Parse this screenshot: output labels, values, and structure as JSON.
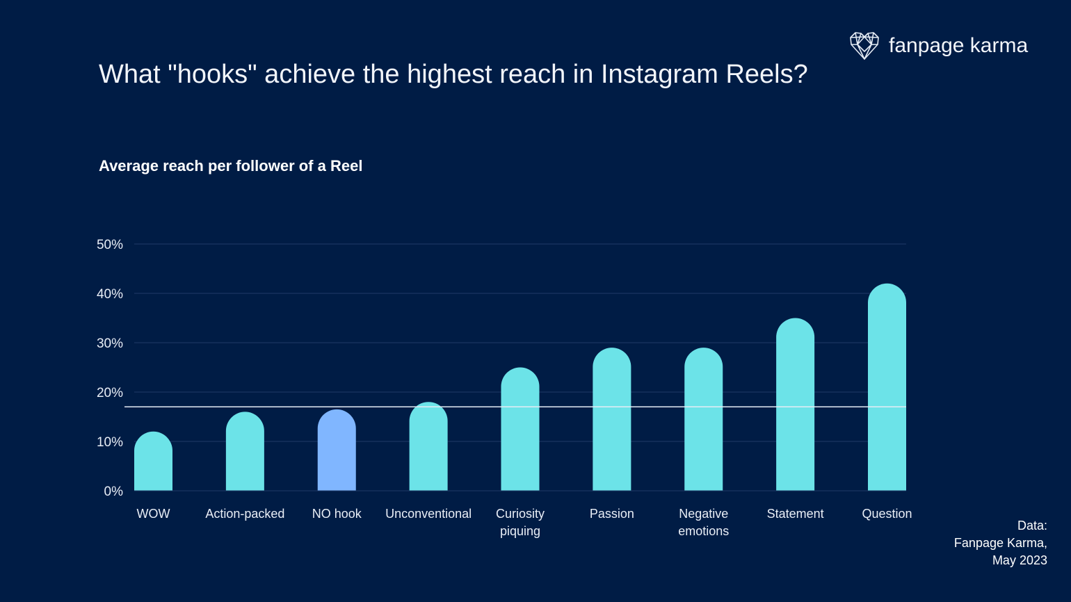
{
  "title": "What \"hooks\" achieve the highest reach in Instagram Reels?",
  "subtitle": "Average reach per follower of a Reel",
  "brand": {
    "name": "fanpage karma",
    "logo_icon": "heart-network-icon"
  },
  "source": [
    "Data:",
    "Fanpage Karma,",
    "May 2023"
  ],
  "colors": {
    "background": "#001c45",
    "bar": "#6ce3e8",
    "highlight_bar": "#80b6ff",
    "gridline": "#1f3a66",
    "reference_line": "#e6ecf5"
  },
  "chart_data": {
    "type": "bar",
    "title": "Average reach per follower of a Reel",
    "categories": [
      [
        "WOW"
      ],
      [
        "Action-packed"
      ],
      [
        "NO hook"
      ],
      [
        "Unconventional"
      ],
      [
        "Curiosity",
        "piquing"
      ],
      [
        "Passion"
      ],
      [
        "Negative",
        "emotions"
      ],
      [
        "Statement"
      ],
      [
        "Question"
      ]
    ],
    "values": [
      12,
      16,
      16.5,
      18,
      25,
      29,
      29,
      35,
      42
    ],
    "highlight_index": 2,
    "reference_value": 17,
    "ylim": [
      0,
      50
    ],
    "yticks": [
      0,
      10,
      20,
      30,
      40,
      50
    ],
    "ytick_labels": [
      "0%",
      "10%",
      "20%",
      "30%",
      "40%",
      "50%"
    ],
    "grid": true,
    "legend": "none"
  }
}
